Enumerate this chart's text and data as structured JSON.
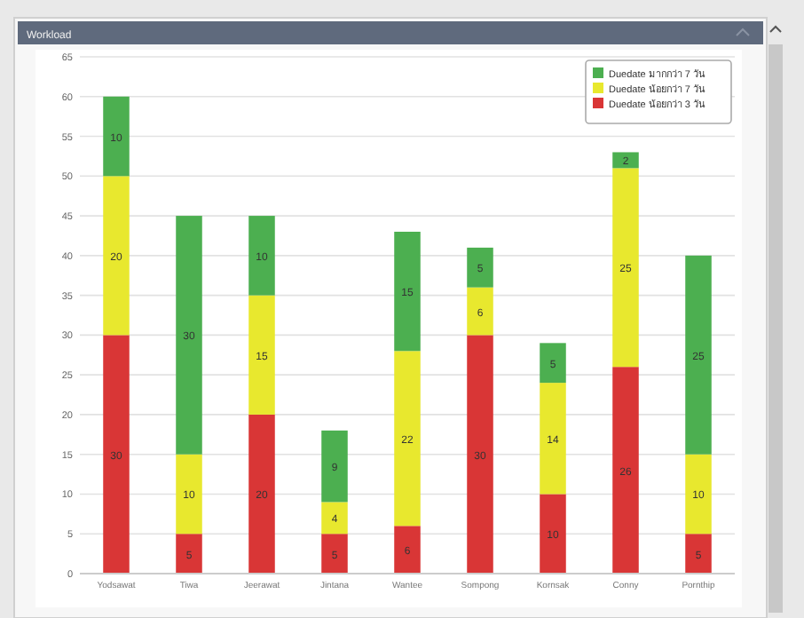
{
  "chart_data": {
    "type": "bar",
    "title": "Workload",
    "stacked": true,
    "data_labels": true,
    "grid": "y",
    "legend": "top right",
    "categories": [
      "Yodsawat",
      "Tiwa",
      "Jeerawat",
      "Jintana",
      "Wantee",
      "Sompong",
      "Kornsak",
      "Conny",
      "Pornthip"
    ],
    "series": [
      {
        "name": "Duedate น้อยกว่า 3 วัน",
        "color": "#d93636",
        "values": [
          30,
          5,
          20,
          5,
          6,
          30,
          10,
          26,
          5
        ]
      },
      {
        "name": "Duedate น้อยกว่า 7 วัน",
        "color": "#e8e82e",
        "values": [
          20,
          10,
          15,
          4,
          22,
          6,
          14,
          25,
          10
        ]
      },
      {
        "name": "Duedate มากกว่า 7 วัน",
        "color": "#4caf50",
        "values": [
          10,
          30,
          10,
          9,
          15,
          5,
          5,
          2,
          25
        ]
      }
    ],
    "ylim": [
      0,
      65
    ],
    "yticks": [
      0,
      5,
      10,
      15,
      20,
      25,
      30,
      35,
      40,
      45,
      50,
      55,
      60,
      65
    ]
  }
}
